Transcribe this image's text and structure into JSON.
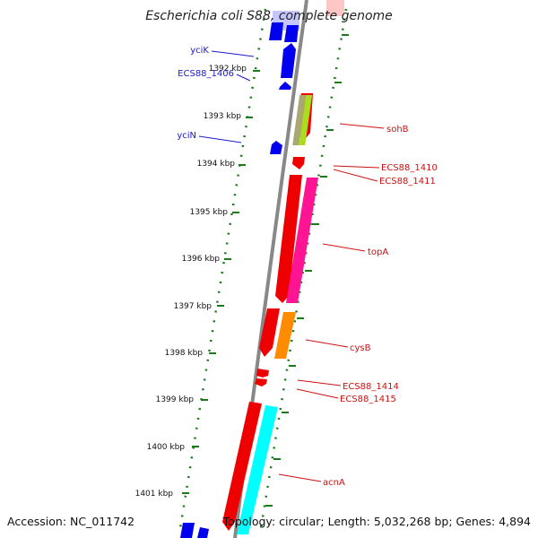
{
  "title": "Escherichia coli S88, complete genome",
  "footer": {
    "accession": "Accession: NC_011742",
    "topology": "Topology: circular; Length: 5,032,268 bp; Genes: 4,894"
  },
  "colors": {
    "backbone": "#888888",
    "tick": "#1a7a1a",
    "forward_gene": "#0000ee",
    "reverse_gene": "#ee0000",
    "blue_label": "#1a1acc",
    "red_label": "#cc1111"
  },
  "kbp_ticks": [
    "1392 kbp",
    "1393 kbp",
    "1394 kbp",
    "1395 kbp",
    "1396 kbp",
    "1397 kbp",
    "1398 kbp",
    "1399 kbp",
    "1400 kbp",
    "1401 kbp"
  ],
  "gene_labels": [
    {
      "name": "yciK",
      "color": "blue"
    },
    {
      "name": "ECS88_1406",
      "color": "blue"
    },
    {
      "name": "yciN",
      "color": "blue"
    },
    {
      "name": "sohB",
      "color": "red"
    },
    {
      "name": "ECS88_1410",
      "color": "red"
    },
    {
      "name": "ECS88_1411",
      "color": "red"
    },
    {
      "name": "topA",
      "color": "red"
    },
    {
      "name": "cysB",
      "color": "red"
    },
    {
      "name": "ECS88_1414",
      "color": "red"
    },
    {
      "name": "ECS88_1415",
      "color": "red"
    },
    {
      "name": "acnA",
      "color": "red"
    }
  ]
}
